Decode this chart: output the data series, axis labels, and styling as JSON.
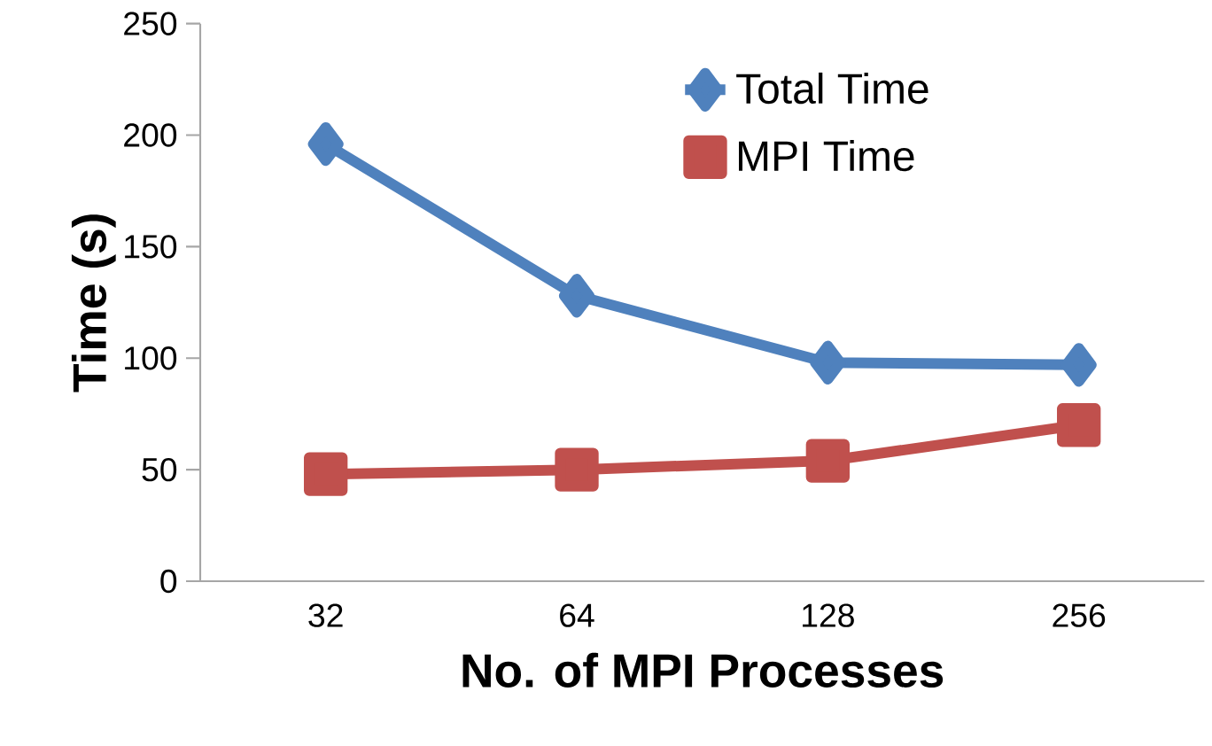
{
  "chart_data": {
    "type": "line",
    "xlabel": "No. of MPI Processes",
    "ylabel": "Time (s)",
    "categories": [
      "32",
      "64",
      "128",
      "256"
    ],
    "series": [
      {
        "name": "Total Time",
        "color": "#4f81bd",
        "marker": "diamond",
        "values": [
          196,
          128,
          98,
          97
        ]
      },
      {
        "name": "MPI Time",
        "color": "#c0504d",
        "marker": "square",
        "values": [
          48,
          50,
          54,
          70
        ]
      }
    ],
    "ylim": [
      0,
      250
    ],
    "yticks": [
      0,
      50,
      100,
      150,
      200,
      250
    ],
    "grid": false,
    "legend": "top right"
  }
}
